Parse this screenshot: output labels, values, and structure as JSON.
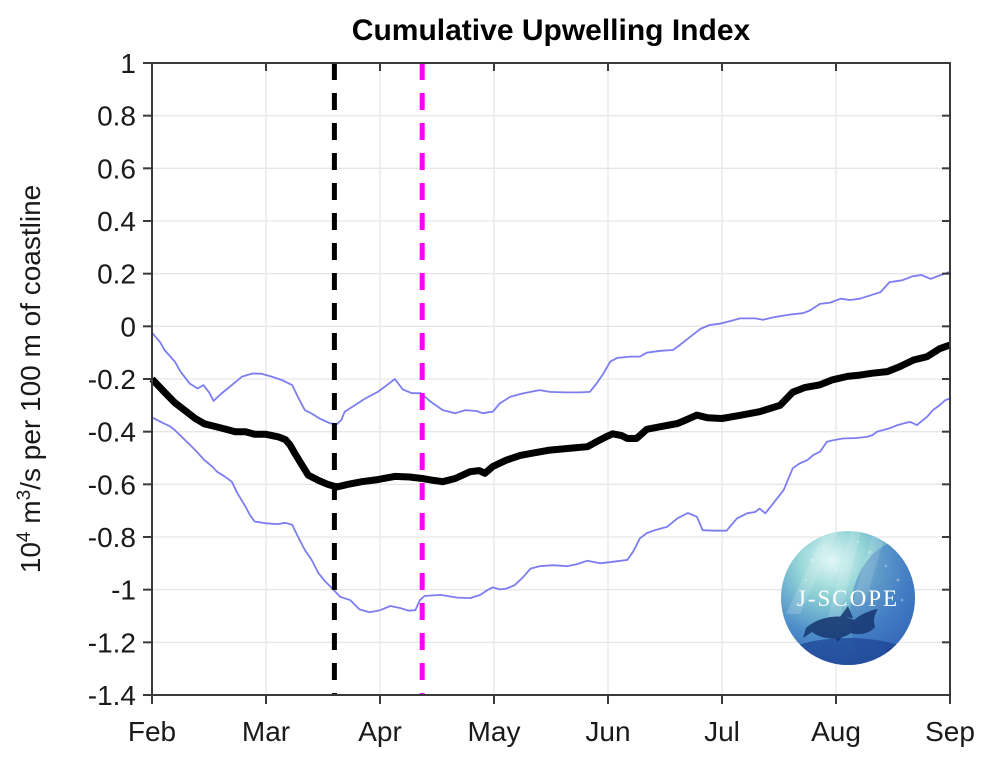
{
  "title": "Cumulative Upwelling Index",
  "axes": {
    "y_label": {
      "p1": "10",
      "sup1": "4",
      "p2": " m",
      "sup2": "3",
      "p3": "/s per 100 m of coastline"
    },
    "x_tick_labels": [
      "Feb",
      "Mar",
      "Apr",
      "May",
      "Jun",
      "Jul",
      "Aug",
      "Sep"
    ],
    "y_tick_labels": [
      "1",
      "0.8",
      "0.6",
      "0.4",
      "0.2",
      "0",
      "-0.2",
      "-0.4",
      "-0.6",
      "-0.8",
      "-1",
      "-1.2",
      "-1.4"
    ]
  },
  "logo": {
    "label": "J-SCOPE"
  },
  "colors": {
    "mean_line": "#000000",
    "bound_line": "#7d7df2",
    "black_dashed": "#000000",
    "magenta_dashed": "#ff00ff",
    "grid": "#e6e6e6",
    "axis": "#3a3a3a",
    "tick_label": "#1a1a1a"
  },
  "chart_data": {
    "type": "line",
    "title": "Cumulative Upwelling Index",
    "xlabel": "",
    "ylabel": "10^4 m^3/s per 100 m of coastline",
    "x_units": "months after Feb 1 (0 = Feb 1, 7 = Sep 1)",
    "xlim": [
      0,
      7
    ],
    "ylim": [
      -1.4,
      1
    ],
    "y_tick_step": 0.2,
    "grid": true,
    "legend": "none",
    "x_tick_labels": [
      "Feb",
      "Mar",
      "Apr",
      "May",
      "Jun",
      "Jul",
      "Aug",
      "Sep"
    ],
    "y_tick_labels": [
      "1",
      "0.8",
      "0.6",
      "0.4",
      "0.2",
      "0",
      "-0.2",
      "-0.4",
      "-0.6",
      "-0.8",
      "-1",
      "-1.2",
      "-1.4"
    ],
    "series": [
      {
        "name": "cumulative upwelling index (thick black mean line)",
        "color": "#000000",
        "width": 7,
        "style": "solid",
        "points": [
          [
            0.0,
            -0.2
          ],
          [
            0.11,
            -0.25
          ],
          [
            0.2,
            -0.29
          ],
          [
            0.29,
            -0.32
          ],
          [
            0.38,
            -0.35
          ],
          [
            0.46,
            -0.37
          ],
          [
            0.55,
            -0.38
          ],
          [
            0.64,
            -0.39
          ],
          [
            0.73,
            -0.4
          ],
          [
            0.82,
            -0.4
          ],
          [
            0.9,
            -0.41
          ],
          [
            1.0,
            -0.41
          ],
          [
            1.11,
            -0.42
          ],
          [
            1.17,
            -0.43
          ],
          [
            1.21,
            -0.45
          ],
          [
            1.25,
            -0.48
          ],
          [
            1.32,
            -0.53
          ],
          [
            1.37,
            -0.565
          ],
          [
            1.46,
            -0.585
          ],
          [
            1.54,
            -0.6
          ],
          [
            1.62,
            -0.61
          ],
          [
            1.72,
            -0.6
          ],
          [
            1.84,
            -0.59
          ],
          [
            1.98,
            -0.582
          ],
          [
            2.13,
            -0.57
          ],
          [
            2.26,
            -0.572
          ],
          [
            2.37,
            -0.578
          ],
          [
            2.47,
            -0.585
          ],
          [
            2.55,
            -0.59
          ],
          [
            2.66,
            -0.578
          ],
          [
            2.79,
            -0.552
          ],
          [
            2.87,
            -0.548
          ],
          [
            2.92,
            -0.558
          ],
          [
            2.99,
            -0.532
          ],
          [
            3.11,
            -0.508
          ],
          [
            3.23,
            -0.49
          ],
          [
            3.36,
            -0.48
          ],
          [
            3.49,
            -0.47
          ],
          [
            3.69,
            -0.462
          ],
          [
            3.82,
            -0.457
          ],
          [
            3.9,
            -0.438
          ],
          [
            3.99,
            -0.418
          ],
          [
            4.04,
            -0.408
          ],
          [
            4.12,
            -0.415
          ],
          [
            4.17,
            -0.426
          ],
          [
            4.25,
            -0.426
          ],
          [
            4.34,
            -0.391
          ],
          [
            4.46,
            -0.381
          ],
          [
            4.61,
            -0.369
          ],
          [
            4.69,
            -0.354
          ],
          [
            4.78,
            -0.337
          ],
          [
            4.87,
            -0.347
          ],
          [
            5.0,
            -0.35
          ],
          [
            5.16,
            -0.338
          ],
          [
            5.33,
            -0.324
          ],
          [
            5.51,
            -0.3
          ],
          [
            5.62,
            -0.25
          ],
          [
            5.73,
            -0.232
          ],
          [
            5.86,
            -0.222
          ],
          [
            5.97,
            -0.203
          ],
          [
            6.1,
            -0.19
          ],
          [
            6.21,
            -0.185
          ],
          [
            6.32,
            -0.178
          ],
          [
            6.45,
            -0.172
          ],
          [
            6.56,
            -0.153
          ],
          [
            6.68,
            -0.128
          ],
          [
            6.8,
            -0.115
          ],
          [
            6.91,
            -0.085
          ],
          [
            7.0,
            -0.071
          ]
        ]
      },
      {
        "name": "upper ensemble bound (thin blue line)",
        "color": "#7d7df2",
        "width": 1.8,
        "style": "solid",
        "points": [
          [
            0.0,
            -0.024
          ],
          [
            0.07,
            -0.06
          ],
          [
            0.11,
            -0.09
          ],
          [
            0.2,
            -0.134
          ],
          [
            0.25,
            -0.172
          ],
          [
            0.33,
            -0.217
          ],
          [
            0.4,
            -0.236
          ],
          [
            0.45,
            -0.223
          ],
          [
            0.5,
            -0.25
          ],
          [
            0.54,
            -0.283
          ],
          [
            0.61,
            -0.255
          ],
          [
            0.7,
            -0.223
          ],
          [
            0.79,
            -0.191
          ],
          [
            0.88,
            -0.179
          ],
          [
            0.96,
            -0.18
          ],
          [
            1.05,
            -0.191
          ],
          [
            1.14,
            -0.204
          ],
          [
            1.23,
            -0.223
          ],
          [
            1.28,
            -0.268
          ],
          [
            1.34,
            -0.318
          ],
          [
            1.4,
            -0.331
          ],
          [
            1.47,
            -0.35
          ],
          [
            1.56,
            -0.368
          ],
          [
            1.62,
            -0.372
          ],
          [
            1.66,
            -0.356
          ],
          [
            1.69,
            -0.324
          ],
          [
            1.78,
            -0.299
          ],
          [
            1.87,
            -0.274
          ],
          [
            1.98,
            -0.249
          ],
          [
            2.07,
            -0.22
          ],
          [
            2.13,
            -0.2
          ],
          [
            2.2,
            -0.24
          ],
          [
            2.28,
            -0.254
          ],
          [
            2.36,
            -0.254
          ],
          [
            2.44,
            -0.285
          ],
          [
            2.55,
            -0.318
          ],
          [
            2.66,
            -0.33
          ],
          [
            2.75,
            -0.318
          ],
          [
            2.85,
            -0.322
          ],
          [
            2.9,
            -0.33
          ],
          [
            2.99,
            -0.324
          ],
          [
            3.05,
            -0.293
          ],
          [
            3.14,
            -0.268
          ],
          [
            3.25,
            -0.255
          ],
          [
            3.4,
            -0.242
          ],
          [
            3.49,
            -0.249
          ],
          [
            3.63,
            -0.251
          ],
          [
            3.75,
            -0.251
          ],
          [
            3.84,
            -0.249
          ],
          [
            3.9,
            -0.217
          ],
          [
            3.96,
            -0.179
          ],
          [
            4.02,
            -0.134
          ],
          [
            4.08,
            -0.12
          ],
          [
            4.2,
            -0.115
          ],
          [
            4.28,
            -0.115
          ],
          [
            4.34,
            -0.1
          ],
          [
            4.46,
            -0.093
          ],
          [
            4.57,
            -0.09
          ],
          [
            4.63,
            -0.071
          ],
          [
            4.72,
            -0.04
          ],
          [
            4.81,
            -0.01
          ],
          [
            4.89,
            0.005
          ],
          [
            4.98,
            0.01
          ],
          [
            5.07,
            0.02
          ],
          [
            5.16,
            0.03
          ],
          [
            5.29,
            0.03
          ],
          [
            5.36,
            0.025
          ],
          [
            5.46,
            0.035
          ],
          [
            5.6,
            0.045
          ],
          [
            5.71,
            0.05
          ],
          [
            5.77,
            0.06
          ],
          [
            5.86,
            0.085
          ],
          [
            5.95,
            0.09
          ],
          [
            6.04,
            0.105
          ],
          [
            6.12,
            0.1
          ],
          [
            6.21,
            0.105
          ],
          [
            6.32,
            0.12
          ],
          [
            6.39,
            0.13
          ],
          [
            6.47,
            0.168
          ],
          [
            6.58,
            0.175
          ],
          [
            6.67,
            0.19
          ],
          [
            6.75,
            0.195
          ],
          [
            6.83,
            0.18
          ],
          [
            6.92,
            0.195
          ],
          [
            7.0,
            0.207
          ]
        ]
      },
      {
        "name": "lower ensemble bound (thin blue line)",
        "color": "#7d7df2",
        "width": 1.8,
        "style": "solid",
        "points": [
          [
            0.0,
            -0.346
          ],
          [
            0.09,
            -0.366
          ],
          [
            0.16,
            -0.38
          ],
          [
            0.2,
            -0.394
          ],
          [
            0.29,
            -0.432
          ],
          [
            0.38,
            -0.47
          ],
          [
            0.46,
            -0.508
          ],
          [
            0.53,
            -0.533
          ],
          [
            0.57,
            -0.552
          ],
          [
            0.64,
            -0.571
          ],
          [
            0.7,
            -0.59
          ],
          [
            0.75,
            -0.634
          ],
          [
            0.82,
            -0.685
          ],
          [
            0.86,
            -0.717
          ],
          [
            0.9,
            -0.741
          ],
          [
            1.0,
            -0.748
          ],
          [
            1.1,
            -0.751
          ],
          [
            1.17,
            -0.746
          ],
          [
            1.23,
            -0.754
          ],
          [
            1.28,
            -0.798
          ],
          [
            1.34,
            -0.849
          ],
          [
            1.4,
            -0.887
          ],
          [
            1.46,
            -0.937
          ],
          [
            1.52,
            -0.969
          ],
          [
            1.58,
            -0.995
          ],
          [
            1.65,
            -1.027
          ],
          [
            1.74,
            -1.04
          ],
          [
            1.82,
            -1.075
          ],
          [
            1.91,
            -1.086
          ],
          [
            2.0,
            -1.078
          ],
          [
            2.09,
            -1.062
          ],
          [
            2.18,
            -1.07
          ],
          [
            2.25,
            -1.08
          ],
          [
            2.31,
            -1.078
          ],
          [
            2.35,
            -1.04
          ],
          [
            2.39,
            -1.024
          ],
          [
            2.53,
            -1.02
          ],
          [
            2.68,
            -1.03
          ],
          [
            2.79,
            -1.032
          ],
          [
            2.88,
            -1.02
          ],
          [
            2.94,
            -1.002
          ],
          [
            2.99,
            -0.991
          ],
          [
            3.05,
            -0.999
          ],
          [
            3.11,
            -0.996
          ],
          [
            3.18,
            -0.983
          ],
          [
            3.25,
            -0.955
          ],
          [
            3.32,
            -0.92
          ],
          [
            3.4,
            -0.911
          ],
          [
            3.52,
            -0.907
          ],
          [
            3.64,
            -0.911
          ],
          [
            3.73,
            -0.903
          ],
          [
            3.82,
            -0.89
          ],
          [
            3.93,
            -0.9
          ],
          [
            4.04,
            -0.894
          ],
          [
            4.17,
            -0.887
          ],
          [
            4.22,
            -0.856
          ],
          [
            4.28,
            -0.805
          ],
          [
            4.34,
            -0.785
          ],
          [
            4.41,
            -0.774
          ],
          [
            4.52,
            -0.761
          ],
          [
            4.61,
            -0.729
          ],
          [
            4.7,
            -0.709
          ],
          [
            4.78,
            -0.723
          ],
          [
            4.83,
            -0.774
          ],
          [
            4.94,
            -0.776
          ],
          [
            5.04,
            -0.776
          ],
          [
            5.13,
            -0.73
          ],
          [
            5.22,
            -0.71
          ],
          [
            5.29,
            -0.705
          ],
          [
            5.33,
            -0.692
          ],
          [
            5.38,
            -0.71
          ],
          [
            5.45,
            -0.672
          ],
          [
            5.54,
            -0.622
          ],
          [
            5.62,
            -0.539
          ],
          [
            5.68,
            -0.521
          ],
          [
            5.75,
            -0.508
          ],
          [
            5.8,
            -0.489
          ],
          [
            5.86,
            -0.476
          ],
          [
            5.92,
            -0.438
          ],
          [
            5.97,
            -0.433
          ],
          [
            6.06,
            -0.426
          ],
          [
            6.18,
            -0.424
          ],
          [
            6.27,
            -0.42
          ],
          [
            6.32,
            -0.413
          ],
          [
            6.36,
            -0.4
          ],
          [
            6.47,
            -0.387
          ],
          [
            6.54,
            -0.375
          ],
          [
            6.59,
            -0.369
          ],
          [
            6.65,
            -0.363
          ],
          [
            6.71,
            -0.375
          ],
          [
            6.8,
            -0.343
          ],
          [
            6.85,
            -0.318
          ],
          [
            6.91,
            -0.299
          ],
          [
            6.96,
            -0.28
          ],
          [
            7.0,
            -0.274
          ]
        ]
      }
    ],
    "vlines": [
      {
        "name": "black dashed vertical line (mid-March)",
        "x": 1.6,
        "color": "#000000",
        "style": "dashed",
        "width": 5
      },
      {
        "name": "magenta dashed vertical line (mid-April)",
        "x": 2.37,
        "color": "#ff00ff",
        "style": "dashed",
        "width": 5
      }
    ]
  }
}
